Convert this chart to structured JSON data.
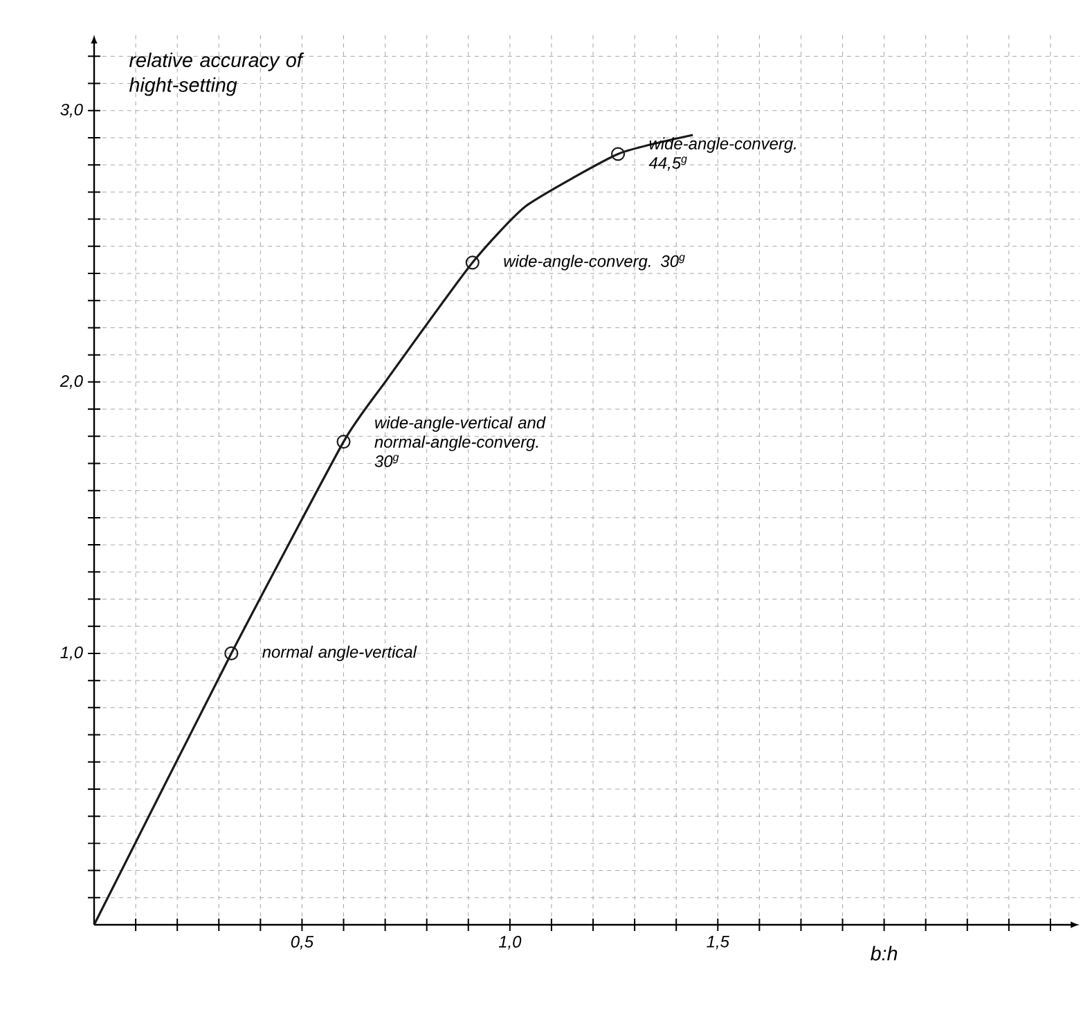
{
  "chart_data": {
    "type": "line",
    "ylabel": "relative accuracy of hight-setting",
    "xlabel": "b:h",
    "series": [
      {
        "color": "#1a1a1a",
        "marker": "none",
        "x": [
          0,
          0.33,
          0.6,
          0.7,
          0.91,
          1.04,
          1.26,
          1.44
        ],
        "values": [
          0,
          1.0,
          1.78,
          2.0,
          2.44,
          2.65,
          2.84,
          2.91
        ]
      },
      {
        "type": "scatter",
        "color": "#1a1a1a",
        "marker": "circle",
        "x": [
          0.33,
          0.6,
          0.91,
          1.26
        ],
        "values": [
          1.0,
          1.78,
          2.44,
          2.84
        ]
      }
    ],
    "annotations": [
      {
        "text": "normal angle-vertical",
        "x": 0.33,
        "y": 1.0
      },
      {
        "text": "wide-angle-vertical and normal-angle-converg. 30$^{g}$",
        "x": 0.6,
        "y": 1.78
      },
      {
        "text": "wide-angle-converg. 30$^{g}$",
        "x": 0.91,
        "y": 2.44
      },
      {
        "text": "wide-angle-converg. 44,5$^{g}$",
        "x": 1.26,
        "y": 2.84
      }
    ],
    "xlim": [
      0,
      2.37
    ],
    "ylim": [
      0,
      3.28
    ],
    "xticks": [
      {
        "value": 0.1,
        "label": null
      },
      {
        "value": 0.2,
        "label": null
      },
      {
        "value": 0.3,
        "label": null
      },
      {
        "value": 0.4,
        "label": null
      },
      {
        "value": 0.5,
        "label": "0,5"
      },
      {
        "value": 0.6,
        "label": null
      },
      {
        "value": 0.7,
        "label": null
      },
      {
        "value": 0.8,
        "label": null
      },
      {
        "value": 0.9,
        "label": null
      },
      {
        "value": 1.0,
        "label": "1,0"
      },
      {
        "value": 1.1,
        "label": null
      },
      {
        "value": 1.2,
        "label": null
      },
      {
        "value": 1.3,
        "label": null
      },
      {
        "value": 1.4,
        "label": null
      },
      {
        "value": 1.5,
        "label": "1,5"
      },
      {
        "value": 1.6,
        "label": null
      },
      {
        "value": 1.7,
        "label": null
      },
      {
        "value": 1.8,
        "label": null
      },
      {
        "value": 1.9,
        "label": null
      },
      {
        "value": 2.0,
        "label": null
      },
      {
        "value": 2.1,
        "label": null
      },
      {
        "value": 2.2,
        "label": null
      },
      {
        "value": 2.3,
        "label": null
      }
    ],
    "yticks": [
      {
        "value": 0.1,
        "label": null
      },
      {
        "value": 0.2,
        "label": null
      },
      {
        "value": 0.3,
        "label": null
      },
      {
        "value": 0.4,
        "label": null
      },
      {
        "value": 0.5,
        "label": null
      },
      {
        "value": 0.6,
        "label": null
      },
      {
        "value": 0.7,
        "label": null
      },
      {
        "value": 0.8,
        "label": null
      },
      {
        "value": 0.9,
        "label": null
      },
      {
        "value": 1.0,
        "label": "1,0"
      },
      {
        "value": 1.1,
        "label": null
      },
      {
        "value": 1.2,
        "label": null
      },
      {
        "value": 1.3,
        "label": null
      },
      {
        "value": 1.4,
        "label": null
      },
      {
        "value": 1.5,
        "label": null
      },
      {
        "value": 1.6,
        "label": null
      },
      {
        "value": 1.7,
        "label": null
      },
      {
        "value": 1.8,
        "label": null
      },
      {
        "value": 1.9,
        "label": null
      },
      {
        "value": 2.0,
        "label": "2,0"
      },
      {
        "value": 2.1,
        "label": null
      },
      {
        "value": 2.2,
        "label": null
      },
      {
        "value": 2.3,
        "label": null
      },
      {
        "value": 2.4,
        "label": null
      },
      {
        "value": 2.5,
        "label": null
      },
      {
        "value": 2.6,
        "label": null
      },
      {
        "value": 2.7,
        "label": null
      },
      {
        "value": 2.8,
        "label": null
      },
      {
        "value": 2.9,
        "label": null
      },
      {
        "value": 3.0,
        "label": "3,0"
      },
      {
        "value": 3.1,
        "label": null
      },
      {
        "value": 3.2,
        "label": null
      }
    ],
    "grid": true
  }
}
